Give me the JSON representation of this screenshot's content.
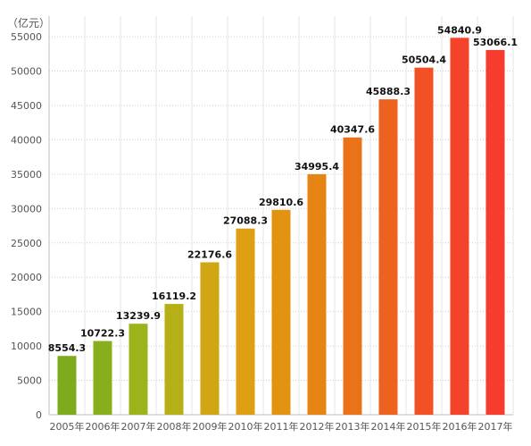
{
  "chart_data": {
    "type": "bar",
    "ylabel": "（亿元）",
    "categories": [
      "2005年",
      "2006年",
      "2007年",
      "2008年",
      "2009年",
      "2010年",
      "2011年",
      "2012年",
      "2013年",
      "2014年",
      "2015年",
      "2016年",
      "2017年"
    ],
    "values": [
      8554.3,
      10722.3,
      13239.9,
      16119.2,
      22176.6,
      27088.3,
      29810.6,
      34995.4,
      40347.6,
      45888.3,
      50504.4,
      54840.9,
      53066.1
    ],
    "value_labels": [
      "8554.3",
      "10722.3",
      "13239.9",
      "16119.2",
      "22176.6",
      "27088.3",
      "29810.6",
      "34995.4",
      "40347.6",
      "45888.3",
      "50504.4",
      "54840.9",
      "53066.1"
    ],
    "yticks": [
      0,
      5000,
      10000,
      15000,
      20000,
      25000,
      30000,
      35000,
      40000,
      45000,
      50000,
      55000
    ],
    "ylim": [
      0,
      58000
    ],
    "grid": true,
    "bar_colors": [
      "#7cab1e",
      "#87af1d",
      "#9db31b",
      "#b5b017",
      "#d1a615",
      "#de9f13",
      "#e39312",
      "#e68414",
      "#ea7319",
      "#ee621f",
      "#f25125",
      "#f4432a",
      "#f53c2e"
    ]
  }
}
